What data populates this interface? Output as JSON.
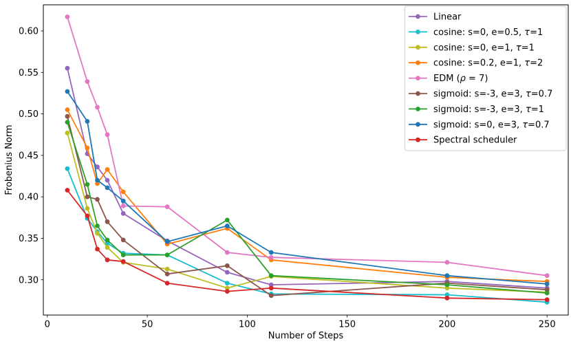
{
  "chart_data": {
    "type": "line",
    "title": "",
    "xlabel": "Number of Steps",
    "ylabel": "Frobenius Norm",
    "grid": false,
    "legend_position": "upper right",
    "background": "#ffffff",
    "spine_color": "#000000",
    "x": [
      10,
      20,
      25,
      30,
      38,
      60,
      90,
      112,
      200,
      250
    ],
    "xticks": [
      0,
      50,
      100,
      150,
      200,
      250
    ],
    "yticks": [
      0.3,
      0.35,
      0.4,
      0.45,
      0.5,
      0.55,
      0.6
    ],
    "xlim": [
      -2.0,
      260.6
    ],
    "ylim": [
      0.2575,
      0.6315
    ],
    "series": [
      {
        "name": "Linear",
        "color": "#9467bd",
        "values": [
          0.555,
          0.452,
          0.436,
          0.42,
          0.38,
          0.347,
          0.309,
          0.294,
          0.298,
          0.29
        ]
      },
      {
        "name": "cosine: s=0, e=0.5, τ=1",
        "color": "#17becf",
        "values": [
          0.434,
          0.374,
          0.358,
          0.344,
          0.332,
          0.33,
          0.296,
          0.283,
          0.282,
          0.273
        ]
      },
      {
        "name": "cosine: s=0, e=1, τ=1",
        "color": "#bcbd22",
        "values": [
          0.477,
          0.386,
          0.356,
          0.339,
          0.321,
          0.313,
          0.29,
          0.304,
          0.29,
          0.285
        ]
      },
      {
        "name": "cosine: s=0.2, e=1, τ=2",
        "color": "#ff7f0e",
        "values": [
          0.505,
          0.459,
          0.416,
          0.433,
          0.406,
          0.343,
          0.362,
          0.324,
          0.303,
          0.298
        ]
      },
      {
        "name": "EDM (ρ = 7)",
        "color": "#e377c2",
        "values": [
          0.617,
          0.539,
          0.508,
          0.475,
          0.389,
          0.388,
          0.333,
          0.327,
          0.321,
          0.305
        ]
      },
      {
        "name": "sigmoid: s=-3, e=3, τ=0.7",
        "color": "#8c564b",
        "values": [
          0.497,
          0.4,
          0.397,
          0.37,
          0.348,
          0.307,
          0.317,
          0.281,
          0.296,
          0.288
        ]
      },
      {
        "name": "sigmoid: s=-3, e=3, τ=1",
        "color": "#2ca02c",
        "values": [
          0.49,
          0.415,
          0.365,
          0.348,
          0.33,
          0.33,
          0.372,
          0.305,
          0.294,
          0.284
        ]
      },
      {
        "name": "sigmoid: s=0, e=3, τ=0.7",
        "color": "#1f77b4",
        "values": [
          0.527,
          0.491,
          0.42,
          0.411,
          0.395,
          0.346,
          0.365,
          0.333,
          0.305,
          0.295
        ]
      },
      {
        "name": "Spectral scheduler",
        "color": "#d62728",
        "values": [
          0.408,
          0.377,
          0.337,
          0.324,
          0.322,
          0.296,
          0.286,
          0.29,
          0.278,
          0.276
        ]
      }
    ]
  }
}
